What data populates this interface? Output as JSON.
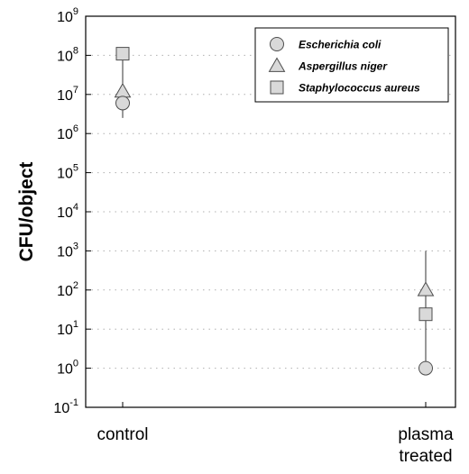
{
  "chart_data": {
    "type": "scatter",
    "ylabel": "CFU/object",
    "xlabel": "",
    "title": "",
    "y_scale": "log",
    "ylim": [
      0.1,
      1000000000
    ],
    "y_ticks": [
      {
        "value": 0.1,
        "base": "10",
        "exp": "-1"
      },
      {
        "value": 1,
        "base": "10",
        "exp": "0"
      },
      {
        "value": 10,
        "base": "10",
        "exp": "1"
      },
      {
        "value": 100,
        "base": "10",
        "exp": "2"
      },
      {
        "value": 1000,
        "base": "10",
        "exp": "3"
      },
      {
        "value": 10000,
        "base": "10",
        "exp": "4"
      },
      {
        "value": 100000,
        "base": "10",
        "exp": "5"
      },
      {
        "value": 1000000,
        "base": "10",
        "exp": "6"
      },
      {
        "value": 10000000,
        "base": "10",
        "exp": "7"
      },
      {
        "value": 100000000,
        "base": "10",
        "exp": "8"
      },
      {
        "value": 1000000000,
        "base": "10",
        "exp": "9"
      }
    ],
    "categories": [
      {
        "lines": [
          "control"
        ]
      },
      {
        "lines": [
          "plasma",
          "treated"
        ]
      }
    ],
    "grid": "horizontal-dotted",
    "legend_position": "top-right",
    "series": [
      {
        "name": "Escherichia coli",
        "marker": "circle",
        "values": [
          6000000,
          1
        ],
        "error_upper": [
          null,
          100
        ]
      },
      {
        "name": "Aspergillus niger",
        "marker": "triangle",
        "values": [
          12000000,
          100
        ],
        "error_upper": [
          40000000,
          1000
        ]
      },
      {
        "name": "Staphylococcus aureus",
        "marker": "square",
        "values": [
          110000000,
          24
        ],
        "error_upper": [
          null,
          null
        ],
        "error_lower": [
          2500000,
          null
        ]
      }
    ],
    "colors": {
      "marker_fill": "#d9d9d9",
      "marker_stroke": "#4d4d4d",
      "axis": "#000000",
      "grid": "#b0b0b0"
    }
  }
}
